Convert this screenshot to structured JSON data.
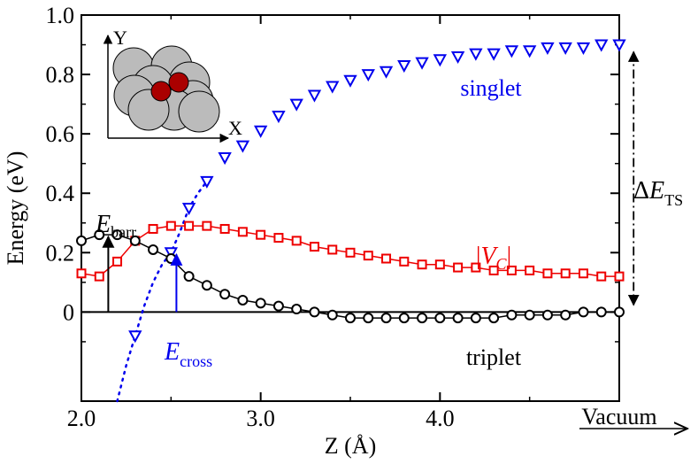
{
  "chart_data": {
    "type": "scatter",
    "xlabel": "Z (Å)",
    "ylabel": "Energy (eV)",
    "xlim": [
      2.0,
      5.0
    ],
    "ylim": [
      -0.3,
      1.0
    ],
    "x_ticks": [
      {
        "value": 2.0,
        "label": "2.0"
      },
      {
        "value": 3.0,
        "label": "3.0"
      },
      {
        "value": 4.0,
        "label": "4.0"
      }
    ],
    "y_ticks": [
      {
        "value": 0.0,
        "label": "0"
      },
      {
        "value": 0.2,
        "label": "0.2"
      },
      {
        "value": 0.4,
        "label": "0.4"
      },
      {
        "value": 0.6,
        "label": "0.6"
      },
      {
        "value": 0.8,
        "label": "0.8"
      },
      {
        "value": 1.0,
        "label": "1.0"
      }
    ],
    "vacuum_label": "Vacuum",
    "series": [
      {
        "name": "singlet",
        "marker": "triangle-down",
        "color": "#0000ee",
        "line_style": "dotted",
        "x": [
          2.3,
          2.5,
          2.6,
          2.7,
          2.8,
          2.9,
          3.0,
          3.1,
          3.2,
          3.3,
          3.4,
          3.5,
          3.6,
          3.7,
          3.8,
          3.9,
          4.0,
          4.1,
          4.2,
          4.3,
          4.4,
          4.5,
          4.6,
          4.7,
          4.8,
          4.9,
          5.0
        ],
        "y": [
          -0.08,
          0.2,
          0.35,
          0.44,
          0.52,
          0.56,
          0.61,
          0.66,
          0.7,
          0.73,
          0.76,
          0.78,
          0.8,
          0.81,
          0.83,
          0.84,
          0.85,
          0.86,
          0.87,
          0.87,
          0.88,
          0.88,
          0.89,
          0.89,
          0.89,
          0.9,
          0.9
        ],
        "curve_x": [
          2.2,
          2.25,
          2.3,
          2.35,
          2.4,
          2.45,
          2.5,
          2.55,
          2.6,
          2.65,
          2.7
        ],
        "curve_y": [
          -0.3,
          -0.18,
          -0.08,
          0.02,
          0.1,
          0.16,
          0.2,
          0.27,
          0.35,
          0.4,
          0.44
        ]
      },
      {
        "name": "|V_C|",
        "marker": "square",
        "color": "#ee0000",
        "line_style": "solid",
        "x": [
          2.0,
          2.1,
          2.2,
          2.3,
          2.4,
          2.5,
          2.6,
          2.7,
          2.8,
          2.9,
          3.0,
          3.1,
          3.2,
          3.3,
          3.4,
          3.5,
          3.6,
          3.7,
          3.8,
          3.9,
          4.0,
          4.1,
          4.2,
          4.3,
          4.4,
          4.5,
          4.6,
          4.7,
          4.8,
          4.9,
          5.0
        ],
        "y": [
          0.13,
          0.12,
          0.17,
          0.24,
          0.28,
          0.29,
          0.29,
          0.29,
          0.28,
          0.27,
          0.26,
          0.25,
          0.24,
          0.22,
          0.21,
          0.2,
          0.19,
          0.18,
          0.17,
          0.16,
          0.16,
          0.15,
          0.15,
          0.14,
          0.14,
          0.14,
          0.13,
          0.13,
          0.13,
          0.12,
          0.12
        ]
      },
      {
        "name": "triplet",
        "marker": "circle",
        "color": "#000000",
        "line_style": "solid",
        "x": [
          2.0,
          2.1,
          2.2,
          2.3,
          2.4,
          2.5,
          2.6,
          2.7,
          2.8,
          2.9,
          3.0,
          3.1,
          3.2,
          3.3,
          3.4,
          3.5,
          3.6,
          3.7,
          3.8,
          3.9,
          4.0,
          4.1,
          4.2,
          4.3,
          4.4,
          4.5,
          4.6,
          4.7,
          4.8,
          4.9,
          5.0
        ],
        "y": [
          0.24,
          0.26,
          0.26,
          0.24,
          0.21,
          0.18,
          0.12,
          0.09,
          0.06,
          0.04,
          0.03,
          0.02,
          0.01,
          0.0,
          -0.01,
          -0.02,
          -0.02,
          -0.02,
          -0.02,
          -0.02,
          -0.02,
          -0.02,
          -0.02,
          -0.02,
          -0.01,
          -0.01,
          -0.01,
          -0.01,
          0.0,
          0.0,
          0.0
        ]
      }
    ],
    "annotations": {
      "zero_line_y": 0,
      "singlet_label": "singlet",
      "vc_label_open": "|",
      "vc_label_main": "V",
      "vc_label_sub": "C",
      "vc_label_close": "|",
      "triplet_label": "triplet",
      "e_barr_main": "E",
      "e_barr_sub": "barr",
      "e_barr_x": 2.15,
      "e_barr_y": 0.26,
      "e_cross_main": "E",
      "e_cross_sub": "cross",
      "e_cross_x": 2.53,
      "e_cross_y": 0.2,
      "delta_ts_symbol": "Δ",
      "delta_ts_main": "E",
      "delta_ts_sub": "TS",
      "delta_ts_x": 5.08,
      "delta_ts_y_top": 0.9,
      "delta_ts_y_bottom": 0.0
    },
    "inset": {
      "axis_y_label": "Y",
      "axis_x_label": "X",
      "atom_color": "#bbbbbb",
      "molecule_color": "#aa0000"
    }
  }
}
